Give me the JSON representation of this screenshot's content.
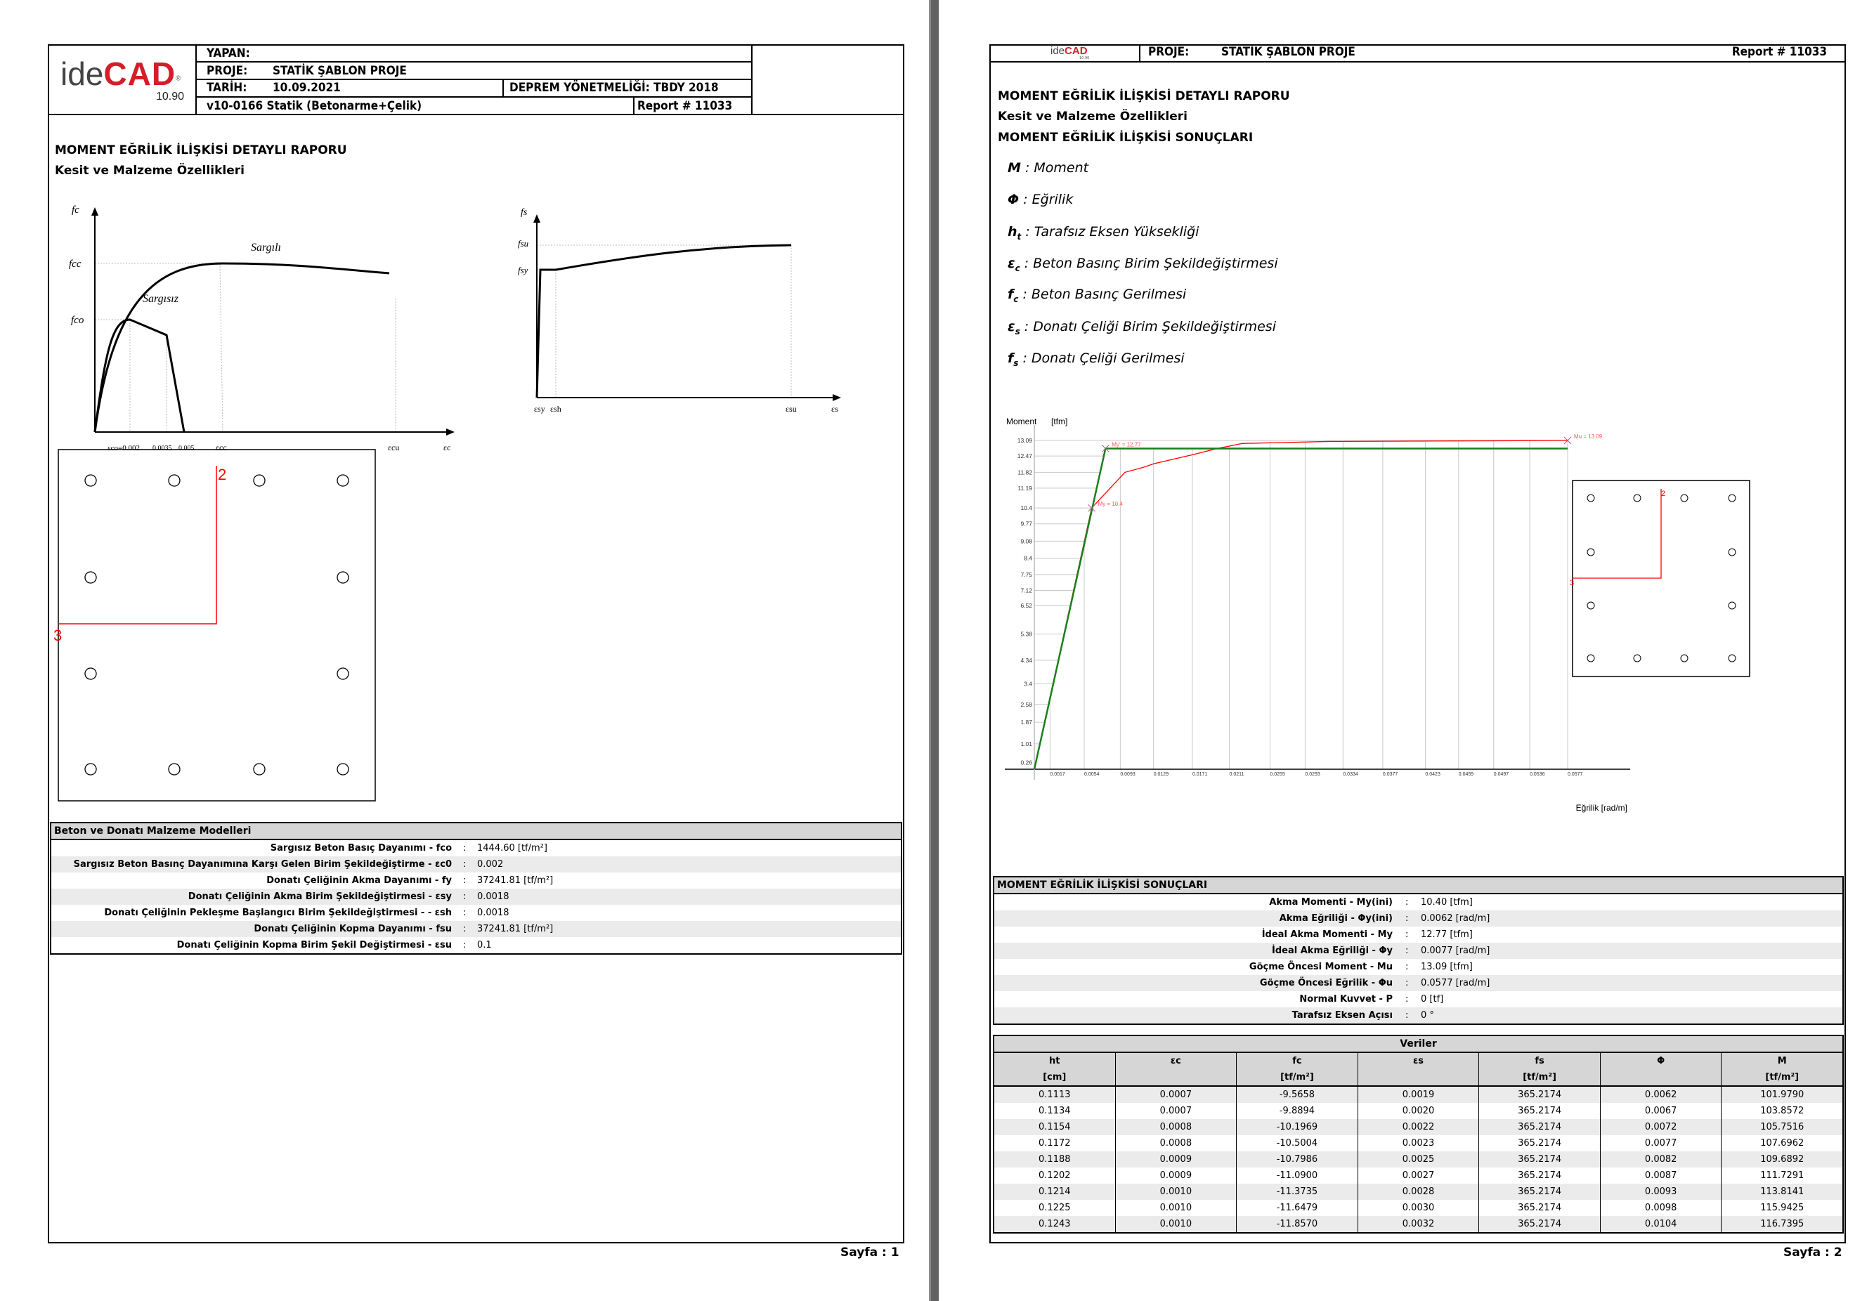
{
  "logo": {
    "brand_prefix": "ide",
    "brand_main": "CAD",
    "version": "10.90",
    "registered": "®"
  },
  "page1": {
    "header": {
      "yapan_label": "YAPAN:",
      "proje_label": "PROJE:",
      "proje_value": "STATİK ŞABLON PROJE",
      "tarih_label": "TARİH:",
      "tarih_value": "10.09.2021",
      "deprem": "DEPREM YÖNETMELİĞİ: TBDY 2018",
      "software": "v10-0166 Statik (Betonarme+Çelik)",
      "report": "Report # 11033"
    },
    "title": "MOMENT EĞRİLİK İLİŞKİSİ DETAYLI RAPORU",
    "subtitle": "Kesit ve Malzeme Özellikleri",
    "concrete_diagram": {
      "y_label": "fc",
      "fcc": "fcc",
      "fco": "fco",
      "confined": "Sargılı",
      "unconfined": "Sargısız",
      "x_labels": [
        "εco=0.002",
        "0.0035",
        "0.005",
        "εcc",
        "εcu",
        "εc"
      ]
    },
    "steel_diagram": {
      "y_label": "fs",
      "fsu": "fsu",
      "fsy": "fsy",
      "x_labels": [
        "εsy",
        "εsh",
        "εsu",
        "εs"
      ]
    },
    "section": {
      "label_2": "2",
      "label_3": "3",
      "line_color": "#ff0000"
    },
    "materials": {
      "title": "Beton ve Donatı Malzeme Modelleri",
      "rows": [
        {
          "label": "Sargısız Beton Basıç Dayanımı  - fco",
          "value": "1444.60 [tf/m²]"
        },
        {
          "label": "Sargısız Beton Basınç Dayanımına Karşı Gelen Birim Şekildeğiştirme  - εc0",
          "value": "0.002"
        },
        {
          "label": "Donatı Çeliğinin Akma Dayanımı  - fy",
          "value": "37241.81 [tf/m²]"
        },
        {
          "label": "Donatı Çeliğinin Akma Birim Şekildeğiştirmesi - εsy",
          "value": "0.0018"
        },
        {
          "label": "Donatı Çeliğinin Pekleşme Başlangıcı Birim Şekildeğiştirmesi - - εsh",
          "value": "0.0018"
        },
        {
          "label": "Donatı Çeliğinin Kopma Dayanımı  - fsu",
          "value": "37241.81 [tf/m²]"
        },
        {
          "label": "Donatı Çeliğinin Kopma Birim Şekil Değiştirmesi - εsu",
          "value": "0.1"
        }
      ]
    },
    "page_number": "Sayfa : 1"
  },
  "page2": {
    "header": {
      "proje_label": "PROJE:",
      "proje_value": "STATİK ŞABLON PROJE",
      "report": "Report # 11033"
    },
    "title": "MOMENT EĞRİLİK İLİŞKİSİ DETAYLI RAPORU",
    "subtitle": "Kesit ve Malzeme Özellikleri",
    "subtitle2": "MOMENT EĞRİLİK İLİŞKİSİ SONUÇLARI",
    "legend": [
      {
        "sym": "M",
        "sub": "",
        "text": " : Moment"
      },
      {
        "sym": "Φ",
        "sub": "",
        "text": " : Eğrilik"
      },
      {
        "sym": "h",
        "sub": "t",
        "text": " : Tarafsız Eksen Yüksekliği"
      },
      {
        "sym": "ε",
        "sub": "c",
        "text": " : Beton Basınç Birim Şekildeğiştirmesi"
      },
      {
        "sym": "f",
        "sub": "c",
        "text": " : Beton Basınç Gerilmesi"
      },
      {
        "sym": "ε",
        "sub": "s",
        "text": " : Donatı Çeliği Birim Şekildeğiştirmesi"
      },
      {
        "sym": "f",
        "sub": "s",
        "text": " : Donatı Çeliği Gerilmesi"
      }
    ],
    "section": {
      "label_2": "2",
      "label_3": "3"
    },
    "results": {
      "title": "MOMENT EĞRİLİK İLİŞKİSİ SONUÇLARI",
      "rows": [
        {
          "label": "Akma Momenti - My(ini)",
          "value": "10.40 [tfm]"
        },
        {
          "label": "Akma Eğriliği - Φy(ini)",
          "value": "0.0062 [rad/m]"
        },
        {
          "label": "İdeal Akma Momenti - My",
          "value": "12.77 [tfm]"
        },
        {
          "label": "İdeal Akma Eğriliği - Φy",
          "value": "0.0077 [rad/m]"
        },
        {
          "label": "Göçme Öncesi Moment - Mu",
          "value": "13.09 [tfm]"
        },
        {
          "label": "Göçme Öncesi Eğrilik  - Φu",
          "value": "0.0577 [rad/m]"
        },
        {
          "label": "Normal Kuvvet - P",
          "value": "0 [tf]"
        },
        {
          "label": "Tarafsız Eksen Açısı",
          "value": "0 °"
        }
      ]
    },
    "data_table": {
      "title": "Veriler",
      "columns": [
        {
          "name": "ht",
          "unit": "[cm]"
        },
        {
          "name": "εc",
          "unit": ""
        },
        {
          "name": "fc",
          "unit": "[tf/m²]"
        },
        {
          "name": "εs",
          "unit": ""
        },
        {
          "name": "fs",
          "unit": "[tf/m²]"
        },
        {
          "name": "Φ",
          "unit": ""
        },
        {
          "name": "M",
          "unit": "[tf/m²]"
        }
      ],
      "rows": [
        [
          "0.1113",
          "0.0007",
          "-9.5658",
          "0.0019",
          "365.2174",
          "0.0062",
          "101.9790"
        ],
        [
          "0.1134",
          "0.0007",
          "-9.8894",
          "0.0020",
          "365.2174",
          "0.0067",
          "103.8572"
        ],
        [
          "0.1154",
          "0.0008",
          "-10.1969",
          "0.0022",
          "365.2174",
          "0.0072",
          "105.7516"
        ],
        [
          "0.1172",
          "0.0008",
          "-10.5004",
          "0.0023",
          "365.2174",
          "0.0077",
          "107.6962"
        ],
        [
          "0.1188",
          "0.0009",
          "-10.7986",
          "0.0025",
          "365.2174",
          "0.0082",
          "109.6892"
        ],
        [
          "0.1202",
          "0.0009",
          "-11.0900",
          "0.0027",
          "365.2174",
          "0.0087",
          "111.7291"
        ],
        [
          "0.1214",
          "0.0010",
          "-11.3735",
          "0.0028",
          "365.2174",
          "0.0093",
          "113.8141"
        ],
        [
          "0.1225",
          "0.0010",
          "-11.6479",
          "0.0030",
          "365.2174",
          "0.0098",
          "115.9425"
        ],
        [
          "0.1243",
          "0.0010",
          "-11.8570",
          "0.0032",
          "365.2174",
          "0.0104",
          "116.7395"
        ]
      ]
    },
    "page_number": "Sayfa : 2"
  },
  "chart_data": {
    "type": "line",
    "ylabel": "Moment",
    "yunit": "[tfm]",
    "xlabel": "Eğrilik [rad/m]",
    "xlim": [
      0,
      0.0577
    ],
    "ylim": [
      0,
      13.09
    ],
    "grid": true,
    "x_ticks": [
      "0.0017",
      "0.0054",
      "0.0093",
      "0.0129",
      "0.0171",
      "0.0211",
      "0.0255",
      "0.0293",
      "0.0334",
      "0.0377",
      "0.0423",
      "0.0459",
      "0.0497",
      "0.0536",
      "0.0577"
    ],
    "y_ticks": [
      "0.26",
      "1.01",
      "1.87",
      "2.58",
      "3.4",
      "4.34",
      "5.38",
      "6.52",
      "7.12",
      "7.75",
      "8.4",
      "9.08",
      "9.77",
      "10.4",
      "11.19",
      "11.82",
      "12.47",
      "13.09"
    ],
    "series": [
      {
        "color": "#ff0000",
        "points": [
          [
            0,
            0
          ],
          [
            0.0062,
            10.4
          ],
          [
            0.0098,
            11.82
          ],
          [
            0.0118,
            12.02
          ],
          [
            0.0129,
            12.16
          ],
          [
            0.0171,
            12.52
          ],
          [
            0.0198,
            12.77
          ],
          [
            0.0225,
            12.97
          ],
          [
            0.0259,
            13.0
          ],
          [
            0.0318,
            13.05
          ],
          [
            0.0577,
            13.09
          ]
        ]
      },
      {
        "color": "#1a7f1a",
        "points": [
          [
            0,
            0
          ],
          [
            0.0077,
            12.77
          ],
          [
            0.0577,
            12.77
          ]
        ]
      }
    ],
    "annotations": [
      {
        "text": "My = 10.4",
        "x": 0.0062,
        "y": 10.4
      },
      {
        "text": "My' = 12.77",
        "x": 0.0077,
        "y": 12.77
      },
      {
        "text": "Mu = 13.09",
        "x": 0.0577,
        "y": 13.09
      }
    ]
  }
}
